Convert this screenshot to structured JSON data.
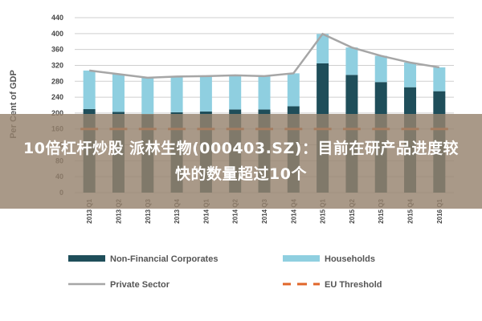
{
  "headline": "10倍杠杆炒股 派林生物(000403.SZ)：目前在研产品进度较快的数量超过10个",
  "colors": {
    "non_financial": "#1f4e5a",
    "households": "#8fcfe0",
    "private_sector": "#a6a6a6",
    "eu_threshold": "#e0662a",
    "banner": "#96826e"
  },
  "chart_data": {
    "type": "bar",
    "stacked": true,
    "ylabel": "Per Cent of GDP",
    "xlabel": "",
    "ylim": [
      0,
      440
    ],
    "yticks": [
      0,
      40,
      80,
      120,
      160,
      200,
      240,
      280,
      320,
      360,
      400,
      440
    ],
    "grid": true,
    "legend_position": "bottom",
    "categories": [
      "2013 Q1",
      "2013 Q2",
      "2013 Q3",
      "2013 Q4",
      "2014 Q1",
      "2014 Q2",
      "2014 Q3",
      "2014 Q4",
      "2015 Q1",
      "2015 Q2",
      "2015 Q3",
      "2015 Q4",
      "2016 Q1"
    ],
    "series": [
      {
        "name": "Non-Financial Corporates",
        "kind": "bar",
        "values": [
          210,
          203,
          197,
          202,
          204,
          209,
          209,
          217,
          325,
          296,
          278,
          265,
          255
        ]
      },
      {
        "name": "Households",
        "kind": "bar",
        "values": [
          97,
          95,
          92,
          90,
          89,
          86,
          84,
          83,
          74,
          69,
          66,
          62,
          60
        ]
      },
      {
        "name": "Private Sector",
        "kind": "line",
        "values": [
          307,
          298,
          289,
          292,
          293,
          295,
          293,
          300,
          399,
          365,
          344,
          327,
          315
        ]
      },
      {
        "name": "EU Threshold",
        "kind": "dashed-line",
        "values": [
          160,
          160,
          160,
          160,
          160,
          160,
          160,
          160,
          160,
          160,
          160,
          160,
          160
        ]
      }
    ]
  }
}
